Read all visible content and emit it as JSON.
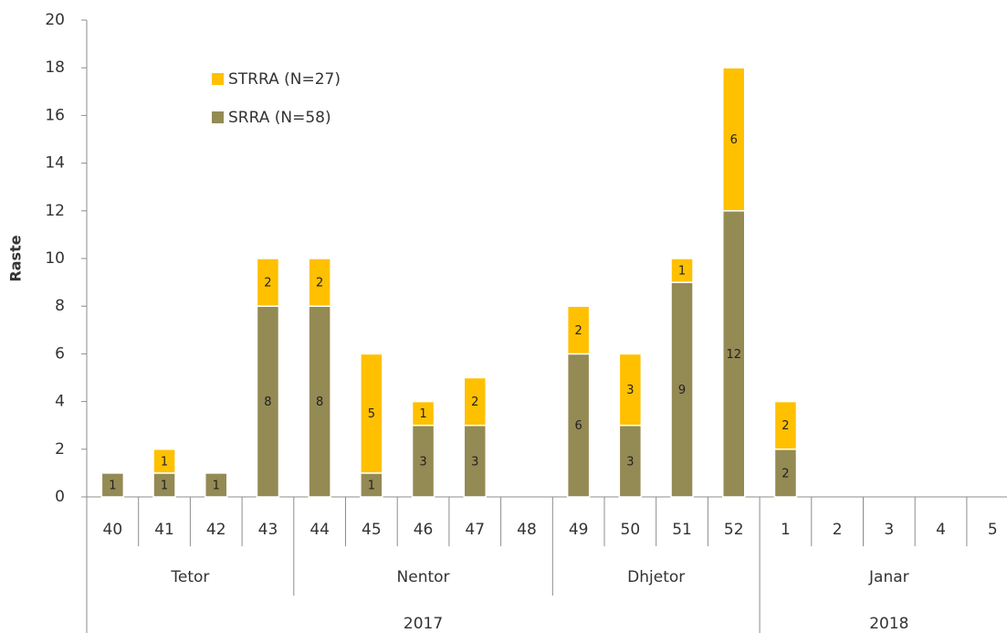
{
  "chart_data": {
    "type": "stacked_bar",
    "y_label": "Raste",
    "categories": [
      "40",
      "41",
      "42",
      "43",
      "44",
      "45",
      "46",
      "47",
      "48",
      "49",
      "50",
      "51",
      "52",
      "1",
      "2",
      "3",
      "4",
      "5"
    ],
    "months": [
      "Tetor",
      null,
      null,
      null,
      "Nentor",
      null,
      null,
      null,
      null,
      "Dhjetor",
      null,
      null,
      null,
      "Janar",
      null,
      null,
      null,
      null
    ],
    "years": [
      "2017",
      null,
      null,
      null,
      null,
      null,
      null,
      null,
      null,
      null,
      null,
      null,
      null,
      "2018",
      null,
      null,
      null,
      null
    ],
    "series": [
      {
        "name": "SRRA (N=58)",
        "color": "#948a54",
        "values": [
          1,
          1,
          1,
          8,
          8,
          1,
          3,
          3,
          null,
          6,
          3,
          9,
          12,
          2,
          null,
          null,
          null,
          null
        ]
      },
      {
        "name": "STRRA (N=27)",
        "color": "#ffc000",
        "values": [
          null,
          1,
          null,
          2,
          2,
          5,
          1,
          2,
          null,
          2,
          3,
          1,
          6,
          2,
          null,
          null,
          null,
          null
        ]
      }
    ],
    "ylim": [
      0,
      20
    ],
    "yticks": [
      0,
      2,
      4,
      6,
      8,
      10,
      12,
      14,
      16,
      18,
      20
    ]
  }
}
